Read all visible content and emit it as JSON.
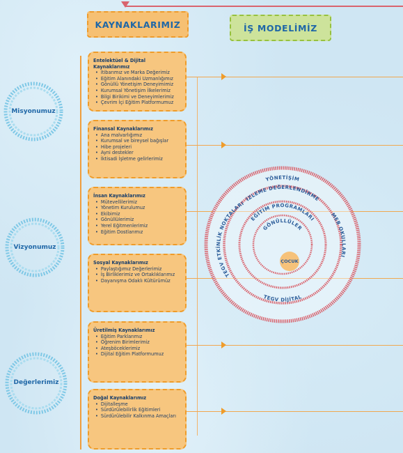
{
  "headers": {
    "resources": "KAYNAKLARIMIZ",
    "model": "İŞ MODELİMİZ"
  },
  "sidebar": {
    "mission": "Misyonumuz",
    "vision": "Vizyonumuz",
    "values": "Değerlerimiz"
  },
  "cards": [
    {
      "title": "Entelektüel & Dijital Kaynaklarımız",
      "items": [
        "İtibarımız ve Marka Değerimiz",
        "Eğitim Alanındaki Uzmanlığımız",
        "Gönüllü Yönetişim Deneyimimiz",
        "Kurumsal Yönetişim İlkelerimiz",
        "Bilgi Birikimi ve Deneyimlerimiz",
        "Çevrim İçi Eğitim Platformumuz"
      ]
    },
    {
      "title": "Finansal Kaynaklarımız",
      "items": [
        "Ana malvarlığımız",
        "Kurumsal ve bireysel bağışlar",
        "Hibe projeleri",
        "Ayni destekler",
        "İktisadi İşletme gelirlerimiz"
      ]
    },
    {
      "title": "İnsan Kaynaklarımız",
      "items": [
        "Mütevellilerimiz",
        "Yönetim Kurulumuz",
        "Ekibimiz",
        "Gönüllülerimiz",
        "Yerel Eğitmenlerimiz",
        "Eğitim Dostlarımız"
      ]
    },
    {
      "title": "Sosyal Kaynaklarımız",
      "items": [
        "Paylaştığımız Değerlerimiz",
        "İş Birliklerimiz ve Ortaklıklarımız",
        "Dayanışma Odaklı Kültürümüz"
      ]
    },
    {
      "title": "Üretilmiş Kaynaklarımız",
      "items": [
        "Eğitim Parklarımız",
        "Öğrenim Birimlerimiz",
        "Ateşböceklerimiz",
        "Dijital Eğitim Platformumuz"
      ]
    },
    {
      "title": "Doğal Kaynaklarımız",
      "items": [
        "Dijitalleşme",
        "Sürdürülebilirlik Eğitimleri",
        "Sürdürülebilir Kalkınma Amaçları"
      ]
    }
  ],
  "rings": {
    "center": "ÇOCUK",
    "volunteers": "GÖNÜLLÜLER",
    "programs": "EĞİTİM PROGRAMLARI",
    "activity_points": "TEGV ETKİNLİK NOKTALARI",
    "meb_schools": "MEB OKULLARI",
    "digital": "TEGV DİJİTAL",
    "monitoring": "İZLEME DEĞERLENDİRME",
    "governance": "YÖNETİŞİM"
  },
  "colors": {
    "card": "#f7c67f",
    "accent_orange": "#ef9c2a",
    "ring_red": "#d9646e",
    "center_yellow": "#f6c27a",
    "title_blue": "#1f67a7"
  }
}
